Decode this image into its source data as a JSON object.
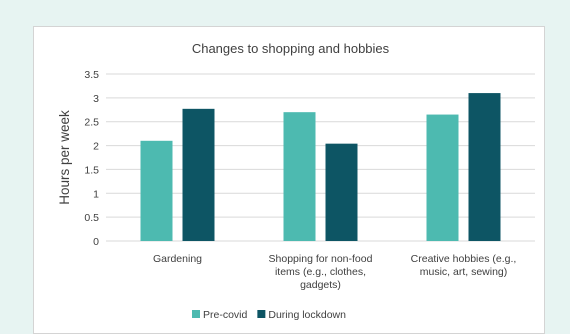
{
  "chart_data": {
    "type": "bar",
    "title": "Changes to shopping and hobbies",
    "ylabel": "Hours per week",
    "xlabel": "",
    "ylim": [
      0,
      3.5
    ],
    "yticks": [
      "0",
      "0.5",
      "1",
      "1.5",
      "2",
      "2.5",
      "3",
      "3.5"
    ],
    "categories": [
      [
        "Gardening"
      ],
      [
        "Shopping for non-food",
        "items (e.g., clothes,",
        "gadgets)"
      ],
      [
        "Creative hobbies (e.g.,",
        "music, art, sewing)"
      ]
    ],
    "series": [
      {
        "name": "Pre-covid",
        "color": "#4dbab0",
        "values": [
          2.1,
          2.7,
          2.65
        ]
      },
      {
        "name": "During lockdown",
        "color": "#0d5564",
        "values": [
          2.77,
          2.04,
          3.1
        ]
      }
    ],
    "grid": true,
    "legend": "bottom"
  },
  "colors": {
    "background": "#e7f4f2",
    "gridline": "#d9d9d9",
    "text": "#404040"
  }
}
